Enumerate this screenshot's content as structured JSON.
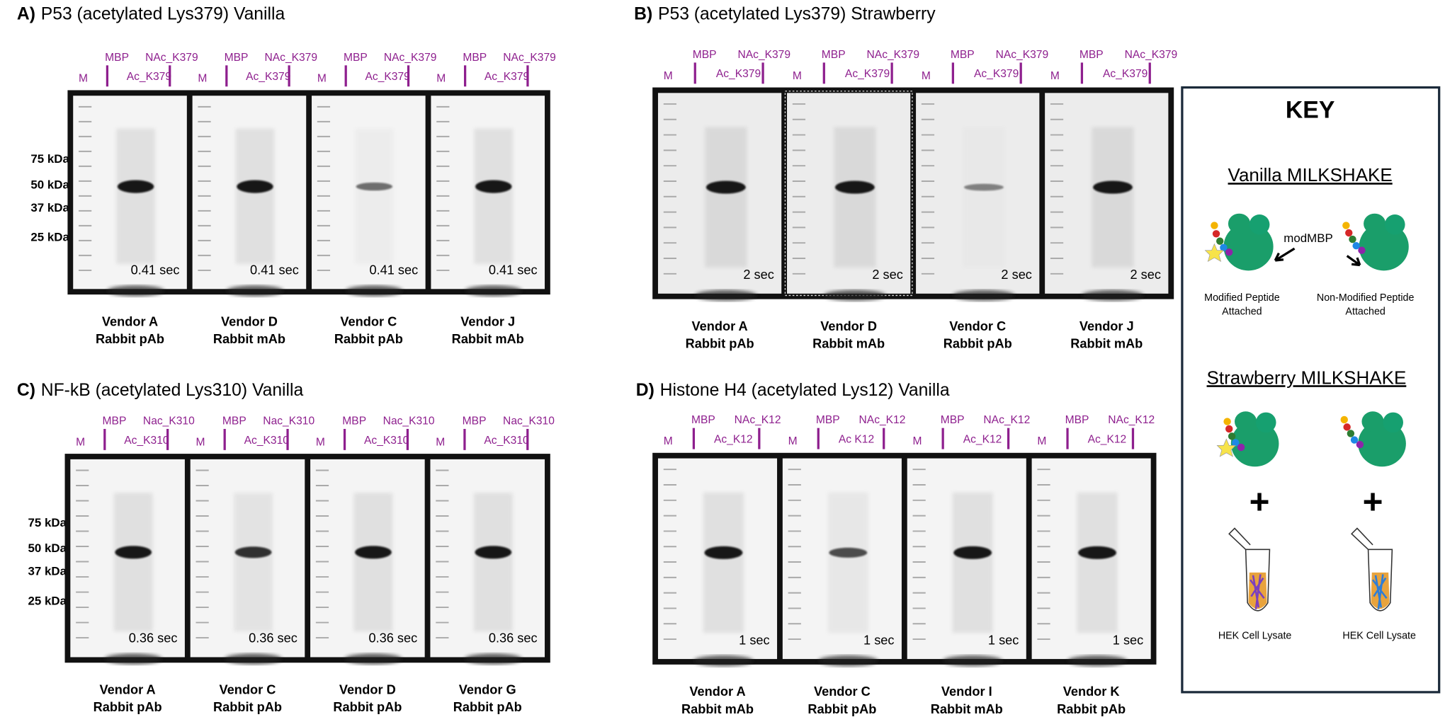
{
  "panels": [
    {
      "label": "A)",
      "title": "P53 (acetylated Lys379) Vanilla",
      "markers": [
        "75 kDa",
        "50 kDa",
        "37 kDa",
        "25 kDa"
      ],
      "blots": [
        {
          "lanes": [
            "M",
            "MBP",
            "Ac_K379",
            "NAc_K379"
          ],
          "time": "0.41 sec",
          "vendor": "Vendor A",
          "antibody": "Rabbit pAb"
        },
        {
          "lanes": [
            "M",
            "MBP",
            "Ac_K379",
            "NAc_K379"
          ],
          "time": "0.41 sec",
          "vendor": "Vendor D",
          "antibody": "Rabbit mAb"
        },
        {
          "lanes": [
            "M",
            "MBP",
            "Ac_K379",
            "NAc_K379"
          ],
          "time": "0.41 sec",
          "vendor": "Vendor C",
          "antibody": "Rabbit pAb"
        },
        {
          "lanes": [
            "M",
            "MBP",
            "Ac_K379",
            "NAc_K379"
          ],
          "time": "0.41 sec",
          "vendor": "Vendor J",
          "antibody": "Rabbit mAb"
        }
      ]
    },
    {
      "label": "B)",
      "title": "P53 (acetylated Lys379) Strawberry",
      "markers": [],
      "blots": [
        {
          "lanes": [
            "M",
            "MBP",
            "Ac_K379",
            "NAc_K379"
          ],
          "time": "2 sec",
          "vendor": "Vendor A",
          "antibody": "Rabbit pAb"
        },
        {
          "lanes": [
            "M",
            "MBP",
            "Ac_K379",
            "NAc_K379"
          ],
          "time": "2 sec",
          "vendor": "Vendor D",
          "antibody": "Rabbit mAb"
        },
        {
          "lanes": [
            "M",
            "MBP",
            "Ac_K379",
            "NAc_K379"
          ],
          "time": "2 sec",
          "vendor": "Vendor C",
          "antibody": "Rabbit pAb"
        },
        {
          "lanes": [
            "M",
            "MBP",
            "Ac_K379",
            "NAc_K379"
          ],
          "time": "2 sec",
          "vendor": "Vendor J",
          "antibody": "Rabbit mAb"
        }
      ]
    },
    {
      "label": "C)",
      "title": "NF-kB (acetylated Lys310) Vanilla",
      "markers": [
        "75 kDa",
        "50 kDa",
        "37 kDa",
        "25 kDa"
      ],
      "blots": [
        {
          "lanes": [
            "M",
            "MBP",
            "Ac_K310",
            "Nac_K310"
          ],
          "time": "0.36 sec",
          "vendor": "Vendor A",
          "antibody": "Rabbit pAb"
        },
        {
          "lanes": [
            "M",
            "MBP",
            "Ac_K310",
            "Nac_K310"
          ],
          "time": "0.36 sec",
          "vendor": "Vendor C",
          "antibody": "Rabbit pAb"
        },
        {
          "lanes": [
            "M",
            "MBP",
            "Ac_K310",
            "Nac_K310"
          ],
          "time": "0.36 sec",
          "vendor": "Vendor D",
          "antibody": "Rabbit pAb"
        },
        {
          "lanes": [
            "M",
            "MBP",
            "Ac_K310",
            "Nac_K310"
          ],
          "time": "0.36 sec",
          "vendor": "Vendor G",
          "antibody": "Rabbit pAb"
        }
      ]
    },
    {
      "label": "D)",
      "title": "Histone H4 (acetylated Lys12) Vanilla",
      "markers": [],
      "blots": [
        {
          "lanes": [
            "M",
            "MBP",
            "Ac_K12",
            "NAc_K12"
          ],
          "time": "1 sec",
          "vendor": "Vendor A",
          "antibody": "Rabbit mAb"
        },
        {
          "lanes": [
            "M",
            "MBP",
            "Ac K12",
            "NAc_K12"
          ],
          "time": "1 sec",
          "vendor": "Vendor C",
          "antibody": "Rabbit pAb"
        },
        {
          "lanes": [
            "M",
            "MBP",
            "Ac_K12",
            "NAc_K12"
          ],
          "time": "1 sec",
          "vendor": "Vendor I",
          "antibody": "Rabbit mAb"
        },
        {
          "lanes": [
            "M",
            "MBP",
            "Ac_K12",
            "NAc_K12"
          ],
          "time": "1 sec",
          "vendor": "Vendor K",
          "antibody": "Rabbit pAb"
        }
      ]
    }
  ],
  "key": {
    "title": "KEY",
    "vanilla": {
      "heading": "Vanilla MILKSHAKE",
      "pointer": "modMBP",
      "captions": [
        [
          "Modified Peptide",
          "Attached"
        ],
        [
          "Non-Modified Peptide",
          "Attached"
        ]
      ]
    },
    "strawberry": {
      "heading": "Strawberry MILKSHAKE",
      "plus": [
        "+",
        "+"
      ],
      "captions": [
        "HEK Cell Lysate",
        "HEK Cell Lysate"
      ]
    }
  }
}
